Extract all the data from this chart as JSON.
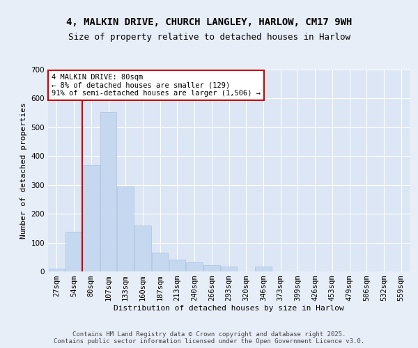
{
  "title_line1": "4, MALKIN DRIVE, CHURCH LANGLEY, HARLOW, CM17 9WH",
  "title_line2": "Size of property relative to detached houses in Harlow",
  "xlabel": "Distribution of detached houses by size in Harlow",
  "ylabel": "Number of detached properties",
  "bins": [
    "27sqm",
    "54sqm",
    "80sqm",
    "107sqm",
    "133sqm",
    "160sqm",
    "187sqm",
    "213sqm",
    "240sqm",
    "266sqm",
    "293sqm",
    "320sqm",
    "346sqm",
    "373sqm",
    "399sqm",
    "426sqm",
    "453sqm",
    "479sqm",
    "506sqm",
    "532sqm",
    "559sqm"
  ],
  "values": [
    10,
    137,
    370,
    553,
    295,
    160,
    65,
    42,
    32,
    22,
    18,
    0,
    18,
    0,
    0,
    0,
    0,
    0,
    0,
    0,
    0
  ],
  "bar_color": "#c5d8f0",
  "bar_edge_color": "#a8c4e0",
  "red_line_bar_index": 2,
  "annotation_text": "4 MALKIN DRIVE: 80sqm\n← 8% of detached houses are smaller (129)\n91% of semi-detached houses are larger (1,506) →",
  "annotation_box_color": "#ffffff",
  "annotation_box_edge_color": "#cc0000",
  "ylim": [
    0,
    700
  ],
  "yticks": [
    0,
    100,
    200,
    300,
    400,
    500,
    600,
    700
  ],
  "background_color": "#e8eef8",
  "plot_bg_color": "#dce6f5",
  "footer_text": "Contains HM Land Registry data © Crown copyright and database right 2025.\nContains public sector information licensed under the Open Government Licence v3.0.",
  "title_fontsize": 10,
  "subtitle_fontsize": 9,
  "axis_label_fontsize": 8,
  "tick_fontsize": 7.5,
  "footer_fontsize": 6.5
}
